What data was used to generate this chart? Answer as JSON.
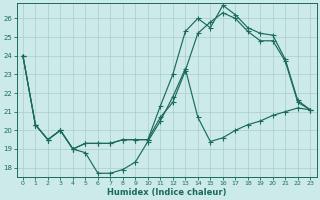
{
  "bg_color": "#cceae8",
  "grid_color": "#aacccc",
  "line_color": "#1a6b5a",
  "xlabel": "Humidex (Indice chaleur)",
  "xlim": [
    -0.5,
    23.5
  ],
  "ylim": [
    17.5,
    26.8
  ],
  "yticks": [
    18,
    19,
    20,
    21,
    22,
    23,
    24,
    25,
    26
  ],
  "xticks": [
    0,
    1,
    2,
    3,
    4,
    5,
    6,
    7,
    8,
    9,
    10,
    11,
    12,
    13,
    14,
    15,
    16,
    17,
    18,
    19,
    20,
    21,
    22,
    23
  ],
  "line1_x": [
    0,
    1,
    2,
    3,
    4,
    5,
    6,
    7,
    8,
    9,
    10,
    11,
    12,
    13,
    14,
    15,
    16,
    17,
    18,
    19,
    20,
    21,
    22,
    23
  ],
  "line1_y": [
    24.0,
    20.3,
    19.5,
    20.0,
    19.0,
    18.8,
    17.7,
    17.7,
    17.9,
    18.3,
    19.4,
    20.5,
    21.8,
    23.3,
    20.7,
    19.4,
    19.6,
    20.0,
    20.3,
    20.5,
    20.8,
    21.0,
    21.2,
    21.1
  ],
  "line2_x": [
    0,
    1,
    2,
    3,
    4,
    5,
    6,
    7,
    8,
    9,
    10,
    11,
    12,
    13,
    14,
    15,
    16,
    17,
    18,
    19,
    20,
    21,
    22,
    23
  ],
  "line2_y": [
    24.0,
    20.3,
    19.5,
    20.0,
    19.0,
    19.3,
    19.3,
    19.3,
    19.5,
    19.5,
    19.5,
    20.7,
    21.5,
    23.2,
    25.2,
    25.8,
    26.3,
    26.0,
    25.3,
    24.8,
    24.8,
    23.7,
    21.5,
    21.1
  ],
  "line3_x": [
    0,
    1,
    2,
    3,
    4,
    5,
    6,
    7,
    8,
    9,
    10,
    11,
    12,
    13,
    14,
    15,
    16,
    17,
    18,
    19,
    20,
    21,
    22,
    23
  ],
  "line3_y": [
    24.0,
    20.3,
    19.5,
    20.0,
    19.0,
    19.3,
    19.3,
    19.3,
    19.5,
    19.5,
    19.5,
    21.3,
    23.0,
    25.3,
    26.0,
    25.5,
    26.7,
    26.2,
    25.5,
    25.2,
    25.1,
    23.8,
    21.6,
    21.1
  ]
}
